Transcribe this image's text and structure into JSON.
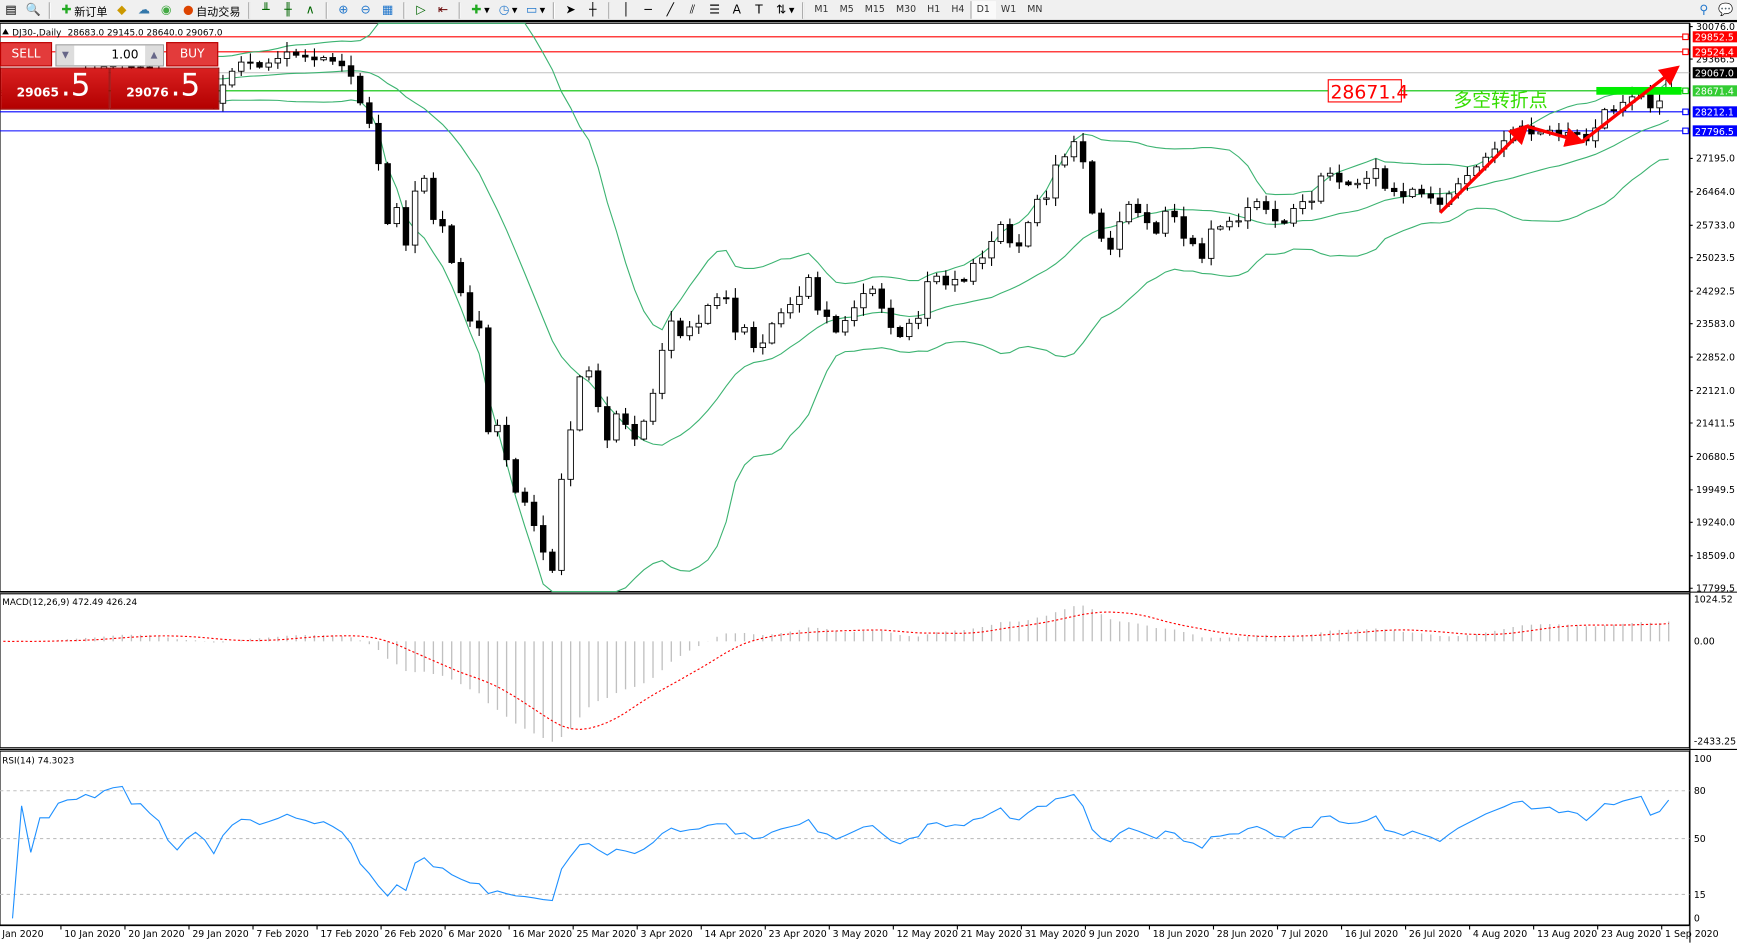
{
  "toolbar": {
    "new_order": "新订单",
    "auto_trading": "自动交易",
    "timeframes": [
      "M1",
      "M5",
      "M15",
      "M30",
      "H1",
      "H4",
      "D1",
      "W1",
      "MN"
    ],
    "active_timeframe": "D1"
  },
  "chart_header": {
    "symbol": "DJ30-,Daily",
    "ohlc": "28683.0 29145.0 28640.0 29067.0"
  },
  "trade_panel": {
    "sell_label": "SELL",
    "buy_label": "BUY",
    "volume": "1.00",
    "sell_small": "29065",
    "sell_big": ".5",
    "buy_small": "29076",
    "buy_big": ".5"
  },
  "macd_label": "MACD(12,26,9) 472.49 426.24",
  "rsi_label": "RSI(14) 74.3023",
  "annotations": {
    "price_box": "28671.4",
    "text": "多空转折点",
    "text_color": "#33dd00",
    "arrow_color": "#ff0000"
  },
  "chart_data": {
    "type": "candlestick",
    "symbol": "DJ30-",
    "timeframe": "Daily",
    "ylim": [
      17799.5,
      30076.0
    ],
    "price_ticks": [
      "30076.0",
      "29366.5",
      "27195.0",
      "26464.0",
      "25733.0",
      "25023.5",
      "24292.5",
      "23583.0",
      "22852.0",
      "22121.0",
      "21411.5",
      "20680.5",
      "19949.5",
      "19240.0",
      "18509.0",
      "17799.5"
    ],
    "last_bar": {
      "open": 28683.0,
      "high": 29145.0,
      "low": 28640.0,
      "close": 29067.0
    },
    "closes": [
      28630,
      28580,
      28700,
      28580,
      28750,
      28750,
      28900,
      28950,
      28960,
      29050,
      29030,
      29200,
      29300,
      29350,
      29180,
      29190,
      29090,
      29000,
      28720,
      28540,
      28730,
      28860,
      28720,
      28400,
      28800,
      29100,
      29300,
      29290,
      29190,
      29280,
      29380,
      29520,
      29450,
      29410,
      29350,
      29400,
      29320,
      29220,
      28990,
      28410,
      27960,
      27080,
      25770,
      26120,
      25300,
      26480,
      26760,
      25860,
      25720,
      24920,
      24260,
      23640,
      23490,
      21220,
      21360,
      20610,
      19900,
      19680,
      19170,
      18590,
      18190,
      20180,
      21260,
      22420,
      22550,
      21770,
      21040,
      21610,
      21380,
      21060,
      21450,
      22060,
      23000,
      23640,
      23320,
      23510,
      23590,
      23980,
      24150,
      24140,
      23400,
      23500,
      23060,
      23160,
      23580,
      23820,
      24000,
      24180,
      24590,
      23880,
      23740,
      23400,
      23650,
      23930,
      24240,
      24340,
      23920,
      23500,
      23300,
      23590,
      23700,
      24500,
      24620,
      24430,
      24550,
      24510,
      24900,
      25020,
      25380,
      25750,
      25350,
      25280,
      25790,
      26300,
      26330,
      27050,
      27230,
      27560,
      27120,
      26000,
      25450,
      25210,
      25810,
      26190,
      26010,
      25790,
      25560,
      26040,
      25920,
      25450,
      25330,
      25010,
      25650,
      25700,
      25820,
      25830,
      26120,
      26250,
      26080,
      25830,
      25780,
      26100,
      26250,
      26260,
      26810,
      26870,
      26680,
      26620,
      26650,
      26760,
      26970,
      26540,
      26470,
      26360,
      26520,
      26420,
      26330,
      26190,
      26420,
      26640,
      26820,
      27010,
      27220,
      27400,
      27580,
      27820,
      27900,
      27730,
      27770,
      27810,
      27700,
      27760,
      27720,
      27580,
      27860,
      28260,
      28240,
      28420,
      28540,
      28670,
      28300,
      28450,
      29067
    ],
    "indicators": {
      "bollinger": {
        "period": 20,
        "deviation": 2,
        "color": "#3cb371"
      },
      "macd": {
        "fast": 12,
        "slow": 26,
        "signal": 9,
        "main": 472.49,
        "signal_value": 426.24,
        "ylim": [
          -2433.25,
          1024.52
        ],
        "ticks": [
          "1024.52",
          "0.00",
          "-2433.25"
        ]
      },
      "rsi": {
        "period": 14,
        "value": 74.3023,
        "levels": [
          80,
          50,
          15
        ],
        "ticks": [
          "100",
          "80",
          "50",
          "15",
          "0"
        ],
        "color": "#1e90ff"
      }
    },
    "hlines": [
      {
        "price": 29852.5,
        "label": "29852.5",
        "color": "#ff0000",
        "bg": "#ff0000"
      },
      {
        "price": 29524.4,
        "label": "29524.4",
        "color": "#ff0000",
        "bg": "#ff0000"
      },
      {
        "price": 29067.0,
        "label": "29067.0",
        "color": "#c0c0c0",
        "bg": "#000000"
      },
      {
        "price": 28671.4,
        "label": "28671.4",
        "color": "#00c000",
        "bg": "#33cc33"
      },
      {
        "price": 28212.1,
        "label": "28212.1",
        "color": "#0000ff",
        "bg": "#0000ff"
      },
      {
        "price": 27796.5,
        "label": "27796.5",
        "color": "#0000ff",
        "bg": "#0000ff"
      }
    ],
    "date_labels": [
      "Jan 2020",
      "10 Jan 2020",
      "20 Jan 2020",
      "29 Jan 2020",
      "7 Feb 2020",
      "17 Feb 2020",
      "26 Feb 2020",
      "6 Mar 2020",
      "16 Mar 2020",
      "25 Mar 2020",
      "3 Apr 2020",
      "14 Apr 2020",
      "23 Apr 2020",
      "3 May 2020",
      "12 May 2020",
      "21 May 2020",
      "31 May 2020",
      "9 Jun 2020",
      "18 Jun 2020",
      "28 Jun 2020",
      "7 Jul 2020",
      "16 Jul 2020",
      "26 Jul 2020",
      "4 Aug 2020",
      "13 Aug 2020",
      "23 Aug 2020",
      "1 Sep 2020"
    ]
  }
}
